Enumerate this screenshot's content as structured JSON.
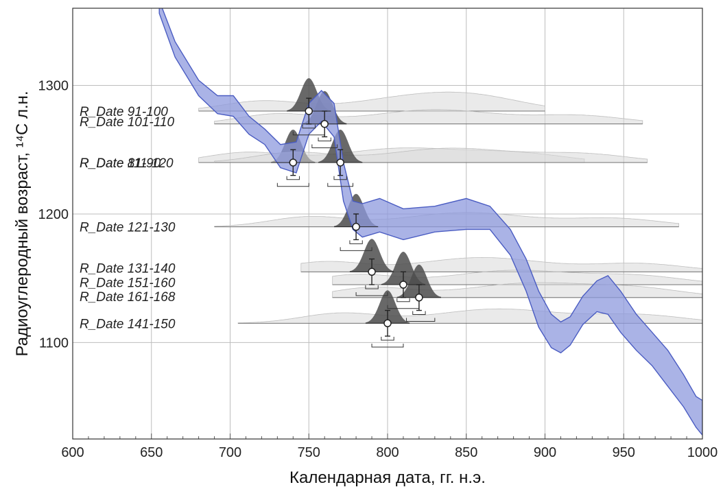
{
  "chart_data": {
    "type": "line",
    "title": "",
    "xlabel": "Календарная дата, гг. н.э.",
    "ylabel": "Радиоуглеродный возраст, ¹⁴C л.н.",
    "xlim": [
      600,
      1000
    ],
    "ylim": [
      1025,
      1360
    ],
    "x_ticks": [
      600,
      650,
      700,
      750,
      800,
      850,
      900,
      950,
      1000
    ],
    "y_ticks": [
      1100,
      1200,
      1300
    ],
    "grid": true,
    "calibration_band": {
      "color": "#4a5cc2",
      "fill": "#8e99de",
      "x": [
        655,
        665,
        680,
        692,
        702,
        712,
        722,
        732,
        742,
        750,
        758,
        766,
        772,
        778,
        784,
        795,
        810,
        830,
        850,
        865,
        878,
        888,
        896,
        904,
        910,
        916,
        924,
        933,
        940,
        948,
        958,
        968,
        978,
        988,
        996,
        1000
      ],
      "upper": [
        1366,
        1334,
        1304,
        1292,
        1292,
        1276,
        1266,
        1254,
        1256,
        1286,
        1296,
        1286,
        1240,
        1210,
        1208,
        1212,
        1204,
        1206,
        1212,
        1206,
        1188,
        1165,
        1140,
        1122,
        1116,
        1120,
        1136,
        1148,
        1152,
        1140,
        1122,
        1108,
        1094,
        1075,
        1058,
        1055
      ],
      "lower": [
        1356,
        1322,
        1292,
        1278,
        1276,
        1262,
        1254,
        1236,
        1232,
        1262,
        1272,
        1260,
        1210,
        1188,
        1182,
        1186,
        1180,
        1186,
        1188,
        1188,
        1168,
        1140,
        1112,
        1096,
        1092,
        1098,
        1114,
        1124,
        1122,
        1108,
        1094,
        1082,
        1066,
        1050,
        1034,
        1028
      ]
    },
    "dates": [
      {
        "label": "R_Date 91-100",
        "y": 1280,
        "x": 750,
        "y_err": 10,
        "x_range": [
          740,
          760
        ],
        "row": 1280,
        "label_y": 1280,
        "line": [
          680,
          900
        ]
      },
      {
        "label": "R_Date 101-110",
        "y": 1270,
        "x": 760,
        "y_err": 10,
        "x_range": [
          752,
          768
        ],
        "row": 1270,
        "label_y": 1272,
        "line": [
          690,
          962
        ]
      },
      {
        "label": "R_Date 81-90",
        "y": 1240,
        "x": 740,
        "y_err": 10,
        "x_range": [
          730,
          750
        ],
        "row": 1240,
        "label_y": 1240,
        "line": [
          680,
          925
        ]
      },
      {
        "label": "R_Date 111-120",
        "y": 1240,
        "x": 770,
        "y_err": 10,
        "x_range": [
          762,
          778
        ],
        "row": 1240,
        "label_y": 1240,
        "line": [
          690,
          965
        ]
      },
      {
        "label": "R_Date 121-130",
        "y": 1190,
        "x": 780,
        "y_err": 10,
        "x_range": [
          770,
          790
        ],
        "row": 1190,
        "label_y": 1190,
        "line": [
          690,
          985
        ]
      },
      {
        "label": "R_Date 131-140",
        "y": 1155,
        "x": 790,
        "y_err": 10,
        "x_range": [
          780,
          800
        ],
        "row": 1155,
        "label_y": 1158,
        "line": [
          745,
          1000
        ]
      },
      {
        "label": "R_Date 151-160",
        "y": 1145,
        "x": 810,
        "y_err": 10,
        "x_range": [
          800,
          820
        ],
        "row": 1145,
        "label_y": 1147,
        "line": [
          765,
          1000
        ]
      },
      {
        "label": "R_Date 161-168",
        "y": 1135,
        "x": 820,
        "y_err": 10,
        "x_range": [
          812,
          830
        ],
        "row": 1135,
        "label_y": 1136,
        "line": [
          765,
          1000
        ]
      },
      {
        "label": "R_Date 141-150",
        "y": 1115,
        "x": 800,
        "y_err": 10,
        "x_range": [
          790,
          810
        ],
        "row": 1115,
        "label_y": 1115,
        "line": [
          705,
          1000
        ]
      }
    ]
  }
}
